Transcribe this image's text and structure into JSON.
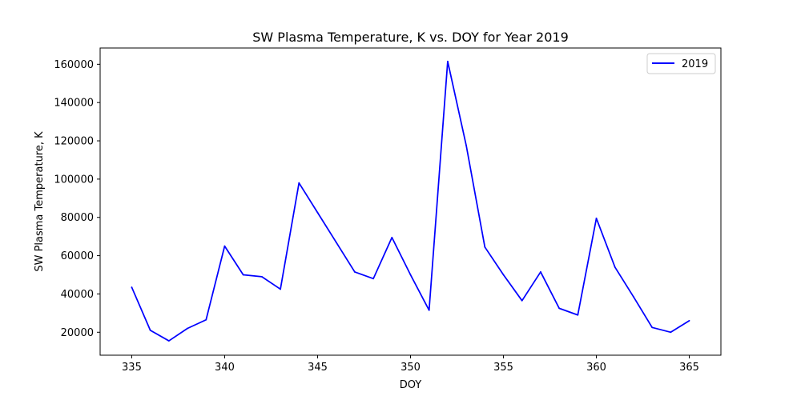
{
  "chart_data": {
    "type": "line",
    "title": "SW Plasma Temperature, K vs. DOY for Year 2019",
    "xlabel": "DOY",
    "ylabel": "SW Plasma Temperature, K",
    "xlim": [
      333.3,
      366.7
    ],
    "ylim": [
      8000,
      168500
    ],
    "xticks": [
      335,
      340,
      345,
      350,
      355,
      360,
      365
    ],
    "yticks": [
      20000,
      40000,
      60000,
      80000,
      100000,
      120000,
      140000,
      160000
    ],
    "grid": false,
    "legend_position": "top-right",
    "series": [
      {
        "name": "2019",
        "color": "#0000ff",
        "x": [
          335,
          336,
          337,
          338,
          339,
          340,
          341,
          342,
          343,
          344,
          345,
          346,
          347,
          348,
          349,
          350,
          351,
          352,
          353,
          354,
          355,
          356,
          357,
          358,
          359,
          360,
          361,
          362,
          363,
          364,
          365
        ],
        "y": [
          43500,
          21000,
          15500,
          22000,
          26500,
          65000,
          50000,
          49000,
          42500,
          98000,
          82500,
          67000,
          51500,
          48000,
          69500,
          50000,
          31500,
          161500,
          117500,
          64500,
          50000,
          36500,
          51500,
          32500,
          29000,
          79500,
          54000,
          38500,
          22500,
          20000,
          26000
        ]
      }
    ]
  }
}
